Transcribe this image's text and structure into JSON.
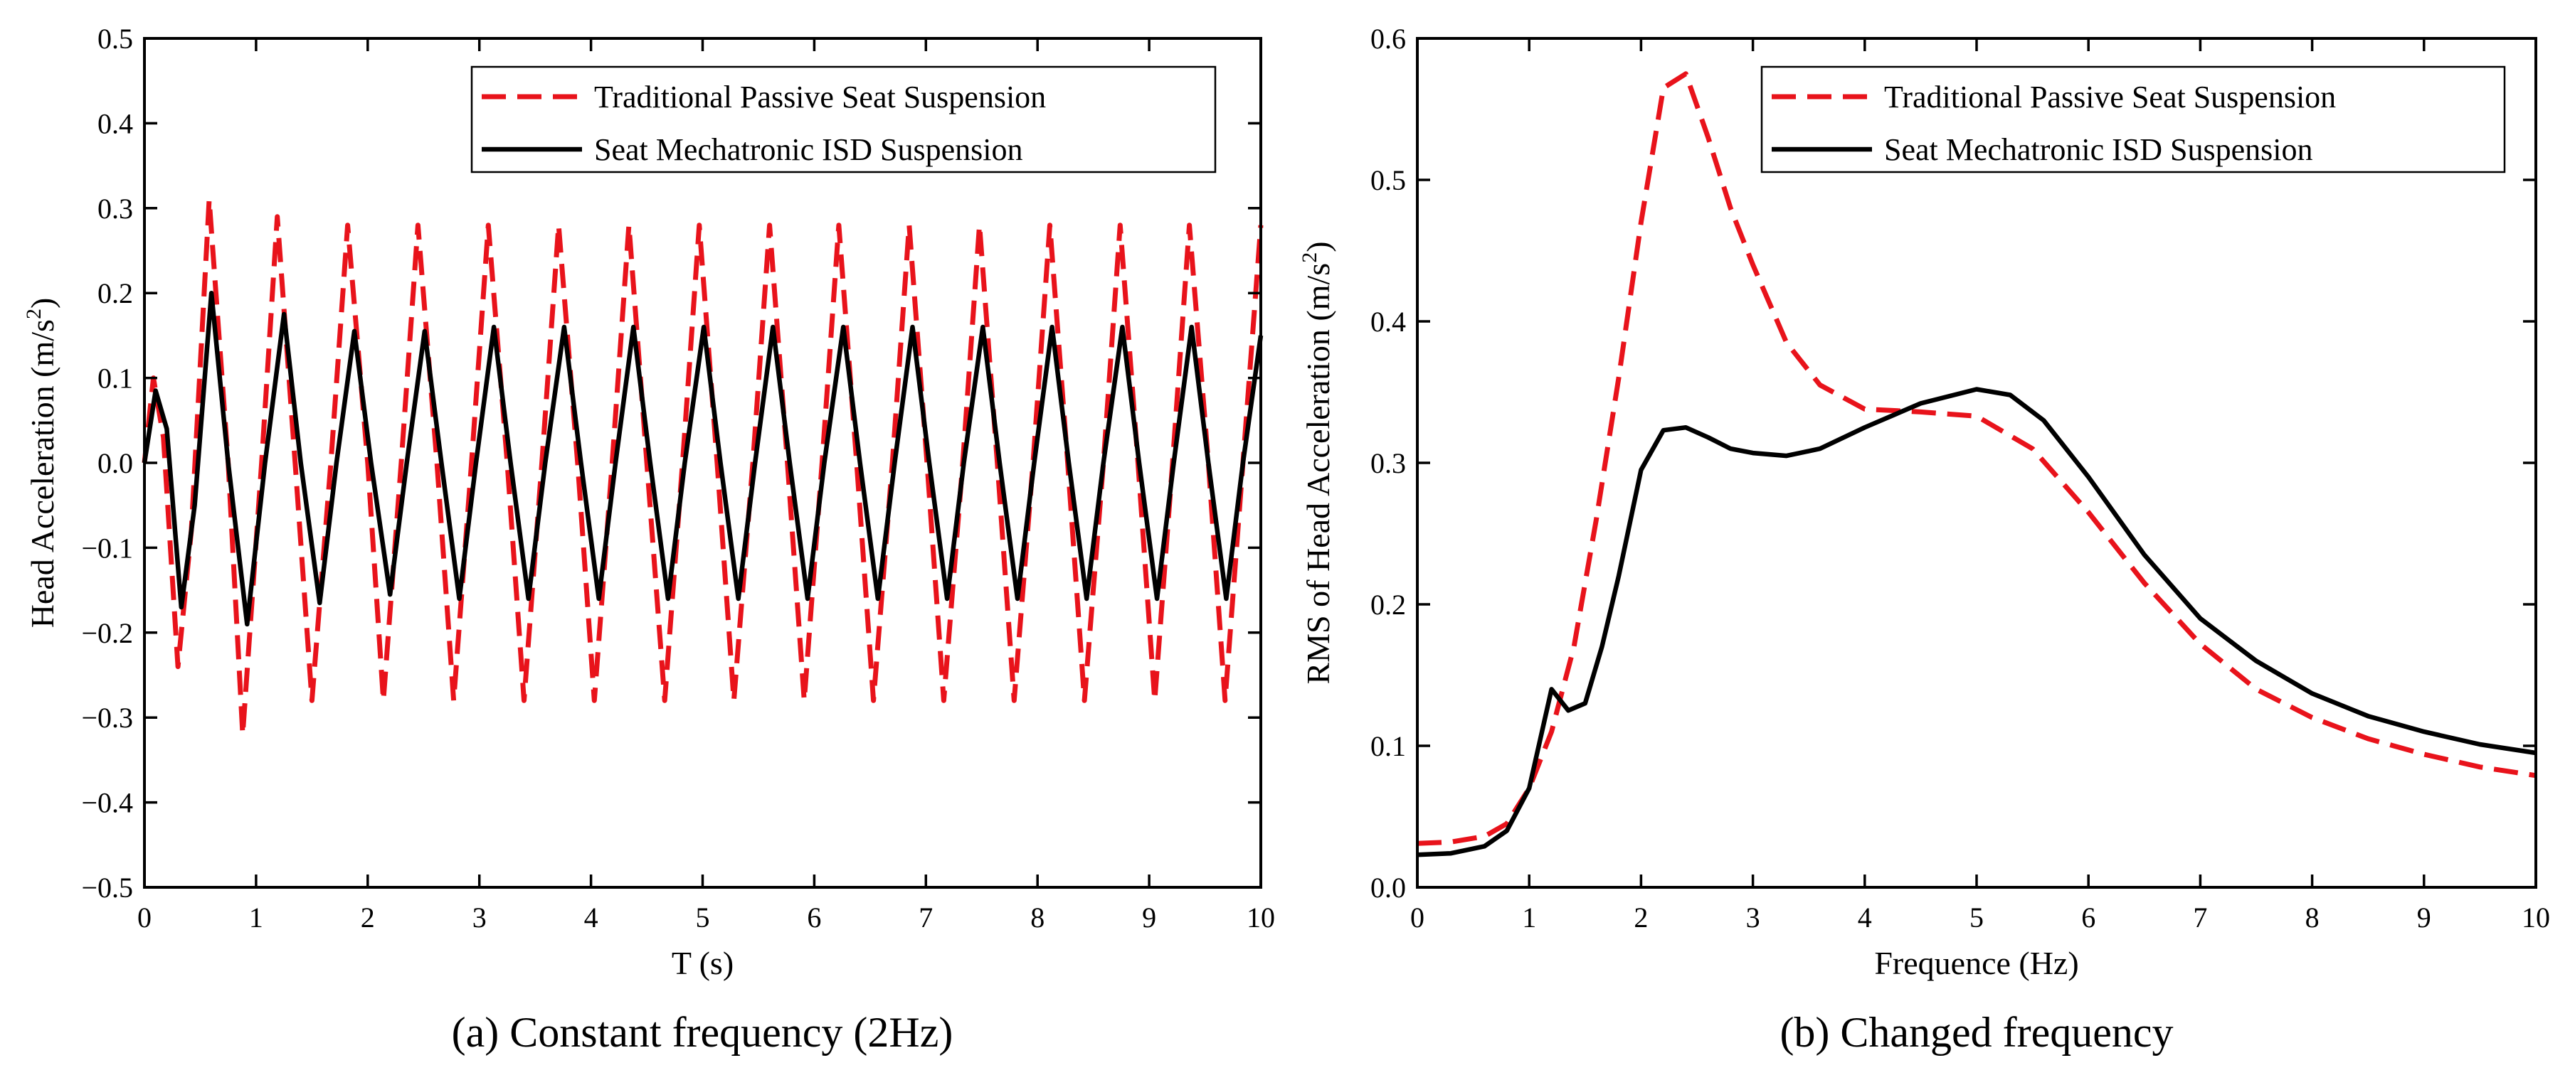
{
  "chart_data": [
    {
      "type": "line",
      "caption": "(a) Constant frequency (2Hz)",
      "xlabel": "T (s)",
      "ylabel": "Head Acceleration (m/s²)",
      "ylabel_main": "Head Acceleration (m/s",
      "ylabel_sup": "2",
      "ylabel_close": ")",
      "xlim": [
        0,
        10
      ],
      "ylim": [
        -0.5,
        0.5
      ],
      "xticks": [
        0,
        1,
        2,
        3,
        4,
        5,
        6,
        7,
        8,
        9,
        10
      ],
      "xtick_labels": [
        "0",
        "1",
        "2",
        "3",
        "4",
        "5",
        "6",
        "7",
        "8",
        "9",
        "10"
      ],
      "yticks": [
        -0.5,
        -0.4,
        -0.3,
        -0.2,
        -0.1,
        0.0,
        0.1,
        0.2,
        0.3,
        0.4,
        0.5
      ],
      "ytick_labels": [
        "−0.5",
        "−0.4",
        "−0.3",
        "−0.2",
        "−0.1",
        "0.0",
        "0.1",
        "0.2",
        "0.3",
        "0.4",
        "0.5"
      ],
      "legend_position": "top-right",
      "series": [
        {
          "name": "Traditional Passive Seat Suspension",
          "color": "#e8131b",
          "style": "dashed",
          "x": [
            0,
            0.08,
            0.17,
            0.3,
            0.42,
            0.58,
            0.75,
            0.88,
            1.05,
            1.19,
            1.35,
            1.5,
            1.67,
            1.82,
            2.0,
            2.14,
            2.3,
            2.45,
            2.62,
            2.77,
            2.93,
            3.08,
            3.25,
            3.4,
            3.56,
            3.71,
            3.88,
            4.03,
            4.19,
            4.34,
            4.5,
            4.66,
            4.82,
            4.97,
            5.13,
            5.28,
            5.45,
            5.6,
            5.76,
            5.91,
            6.07,
            6.22,
            6.38,
            6.53,
            6.7,
            6.85,
            7.01,
            7.16,
            7.33,
            7.48,
            7.64,
            7.79,
            7.96,
            8.11,
            8.27,
            8.42,
            8.59,
            8.74,
            8.9,
            9.05,
            9.21,
            9.36,
            9.53,
            9.68,
            9.84,
            10.0
          ],
          "y": [
            0,
            0.1,
            0.03,
            -0.24,
            -0.08,
            0.31,
            0.0,
            -0.32,
            0.0,
            0.29,
            0.0,
            -0.28,
            0.0,
            0.28,
            0.0,
            -0.28,
            0.0,
            0.28,
            0.0,
            -0.28,
            0.0,
            0.28,
            0.0,
            -0.28,
            0.0,
            0.28,
            0.0,
            -0.28,
            0.0,
            0.28,
            0.0,
            -0.28,
            0.0,
            0.28,
            0.0,
            -0.28,
            0.0,
            0.28,
            0.0,
            -0.28,
            0.0,
            0.28,
            0.0,
            -0.28,
            0.0,
            0.28,
            0.0,
            -0.28,
            0.0,
            0.28,
            0.0,
            -0.28,
            0.0,
            0.28,
            0.0,
            -0.28,
            0.0,
            0.28,
            0.0,
            -0.28,
            0.0,
            0.28,
            0.0,
            -0.28,
            0.0,
            0.28
          ]
        },
        {
          "name": "Seat Mechatronic ISD Suspension",
          "color": "#000000",
          "style": "solid",
          "x": [
            0,
            0.1,
            0.2,
            0.33,
            0.45,
            0.6,
            0.75,
            0.92,
            1.08,
            1.25,
            1.4,
            1.57,
            1.72,
            1.88,
            2.03,
            2.2,
            2.35,
            2.51,
            2.66,
            2.82,
            2.97,
            3.13,
            3.28,
            3.44,
            3.59,
            3.76,
            3.91,
            4.07,
            4.22,
            4.38,
            4.53,
            4.69,
            4.84,
            5.01,
            5.16,
            5.32,
            5.47,
            5.63,
            5.78,
            5.94,
            6.09,
            6.26,
            6.41,
            6.57,
            6.72,
            6.88,
            7.03,
            7.19,
            7.34,
            7.51,
            7.66,
            7.82,
            7.97,
            8.13,
            8.28,
            8.44,
            8.59,
            8.76,
            8.91,
            9.07,
            9.22,
            9.38,
            9.53,
            9.69,
            9.84,
            10.0
          ],
          "y": [
            0,
            0.085,
            0.04,
            -0.17,
            -0.05,
            0.2,
            0.0,
            -0.19,
            0.0,
            0.175,
            0.0,
            -0.165,
            0.0,
            0.155,
            0.0,
            -0.155,
            0.0,
            0.155,
            0.0,
            -0.16,
            0.0,
            0.16,
            0.0,
            -0.16,
            0.0,
            0.16,
            0.0,
            -0.16,
            0.0,
            0.16,
            0.0,
            -0.16,
            0.0,
            0.16,
            0.0,
            -0.16,
            0.0,
            0.16,
            0.0,
            -0.16,
            0.0,
            0.16,
            0.0,
            -0.16,
            0.0,
            0.16,
            0.0,
            -0.16,
            0.0,
            0.16,
            0.0,
            -0.16,
            0.0,
            0.16,
            0.0,
            -0.16,
            0.0,
            0.16,
            0.0,
            -0.16,
            0.0,
            0.16,
            0.0,
            -0.16,
            0.0,
            0.15
          ]
        }
      ]
    },
    {
      "type": "line",
      "caption": "(b) Changed frequency",
      "xlabel": "Frequence (Hz)",
      "ylabel": "RMS of Head Acceleration (m/s²)",
      "ylabel_main": "RMS of  Head Acceleration (m/s",
      "ylabel_sup": "2",
      "ylabel_close": ")",
      "xlim": [
        0,
        10
      ],
      "ylim": [
        0.0,
        0.6
      ],
      "xticks": [
        0,
        1,
        2,
        3,
        4,
        5,
        6,
        7,
        8,
        9,
        10
      ],
      "xtick_labels": [
        "0",
        "1",
        "2",
        "3",
        "4",
        "5",
        "6",
        "7",
        "8",
        "9",
        "10"
      ],
      "yticks": [
        0.0,
        0.1,
        0.2,
        0.3,
        0.4,
        0.5,
        0.6
      ],
      "ytick_labels": [
        "0.0",
        "0.1",
        "0.2",
        "0.3",
        "0.4",
        "0.5",
        "0.6"
      ],
      "legend_position": "top-right",
      "series": [
        {
          "name": "Traditional Passive Seat Suspension",
          "color": "#e8131b",
          "style": "dashed",
          "x": [
            0,
            0.3,
            0.6,
            0.8,
            1.0,
            1.2,
            1.4,
            1.6,
            1.8,
            2.0,
            2.2,
            2.4,
            2.6,
            2.8,
            3.0,
            3.3,
            3.6,
            4.0,
            4.5,
            5.0,
            5.5,
            6.0,
            6.5,
            7.0,
            7.5,
            8.0,
            8.5,
            9.0,
            9.5,
            10.0
          ],
          "y": [
            0.031,
            0.032,
            0.036,
            0.045,
            0.07,
            0.11,
            0.17,
            0.26,
            0.36,
            0.47,
            0.565,
            0.575,
            0.53,
            0.48,
            0.44,
            0.385,
            0.355,
            0.338,
            0.336,
            0.333,
            0.31,
            0.265,
            0.215,
            0.172,
            0.14,
            0.12,
            0.105,
            0.094,
            0.085,
            0.079
          ]
        },
        {
          "name": "Seat Mechatronic ISD Suspension",
          "color": "#000000",
          "style": "solid",
          "x": [
            0,
            0.3,
            0.6,
            0.8,
            1.0,
            1.2,
            1.35,
            1.5,
            1.65,
            1.8,
            2.0,
            2.2,
            2.4,
            2.6,
            2.8,
            3.0,
            3.3,
            3.6,
            4.0,
            4.5,
            5.0,
            5.3,
            5.6,
            6.0,
            6.5,
            7.0,
            7.5,
            8.0,
            8.5,
            9.0,
            9.5,
            10.0
          ],
          "y": [
            0.023,
            0.024,
            0.029,
            0.04,
            0.07,
            0.14,
            0.125,
            0.13,
            0.17,
            0.22,
            0.295,
            0.323,
            0.325,
            0.318,
            0.31,
            0.307,
            0.305,
            0.31,
            0.325,
            0.342,
            0.352,
            0.348,
            0.33,
            0.29,
            0.235,
            0.19,
            0.16,
            0.137,
            0.121,
            0.11,
            0.101,
            0.095
          ]
        }
      ]
    }
  ]
}
